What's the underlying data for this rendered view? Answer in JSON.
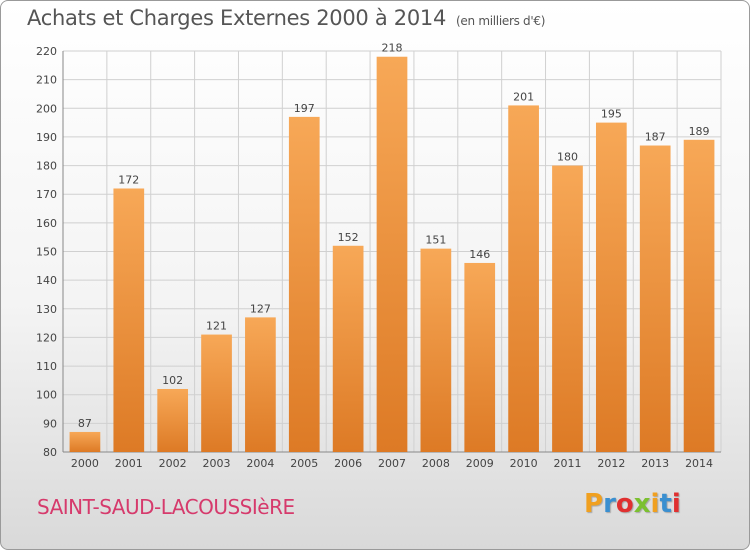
{
  "header": {
    "title": "Achats et Charges Externes 2000 à 2014",
    "unit": "(en milliers d'€)"
  },
  "footer": {
    "commune": "SAINT-SAUD-LACOUSSIèRE",
    "logo_letters": [
      "P",
      "r",
      "o",
      "x",
      "i",
      "t",
      "i"
    ],
    "logo_colors": [
      "#f0a020",
      "#3a8fd0",
      "#e03030",
      "#7cc030",
      "#f0a020",
      "#3a8fd0",
      "#e03030"
    ]
  },
  "colors": {
    "bar_light": "#f7a857",
    "bar_dark": "#dd7a25",
    "grid": "#d0d0d0",
    "axis": "#888888"
  },
  "chart_data": {
    "type": "bar",
    "title": "Achats et Charges Externes 2000 à 2014",
    "categories": [
      "2000",
      "2001",
      "2002",
      "2003",
      "2004",
      "2005",
      "2006",
      "2007",
      "2008",
      "2009",
      "2010",
      "2011",
      "2012",
      "2013",
      "2014"
    ],
    "values": [
      87,
      172,
      102,
      121,
      127,
      197,
      152,
      218,
      151,
      146,
      201,
      180,
      195,
      187,
      189
    ],
    "ylim": [
      80,
      220
    ],
    "yticks": [
      80,
      90,
      100,
      110,
      120,
      130,
      140,
      150,
      160,
      170,
      180,
      190,
      200,
      210,
      220
    ],
    "grid": true
  }
}
